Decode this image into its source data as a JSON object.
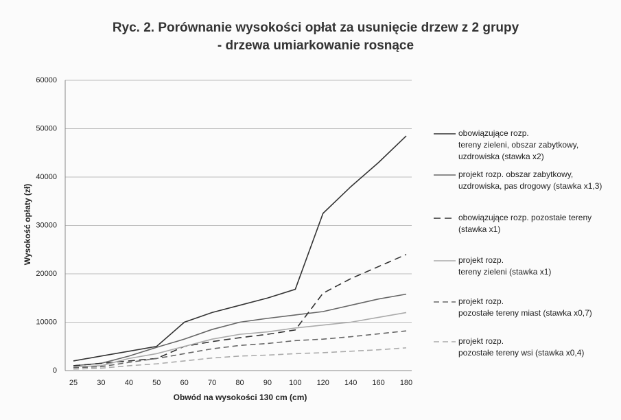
{
  "chart_data": {
    "type": "line",
    "title": "Ryc. 2. Porównanie wysokości opłat za usunięcie drzew z 2 grupy\n- drzewa umiarkowanie rosnące",
    "x_label": "Obwód  na wysokości 130 cm (cm)",
    "y_label": "Wysokość opłaty (zł)",
    "categories": [
      "25",
      "30",
      "40",
      "50",
      "60",
      "70",
      "80",
      "90",
      "100",
      "120",
      "140",
      "160",
      "180"
    ],
    "ylim": [
      0,
      60000
    ],
    "yticks": [
      0,
      10000,
      20000,
      30000,
      40000,
      50000,
      60000
    ],
    "grid": true,
    "legend": "right",
    "series": [
      {
        "name": "obowiązujące rozp.\ntereny zieleni, obszar zabytkowy,\nuzdrowiska (stawka x2)",
        "color": "#333333",
        "dash": "none",
        "values": [
          2000,
          3000,
          4000,
          5000,
          10000,
          12000,
          13500,
          15000,
          16800,
          32500,
          38000,
          43000,
          48500
        ]
      },
      {
        "name": "projekt rozp. obszar zabytkowy,\nuzdrowiska, pas drogowy (stawka x1,3)",
        "color": "#666666",
        "dash": "none",
        "values": [
          1000,
          1500,
          3000,
          4800,
          6500,
          8500,
          10000,
          10800,
          11500,
          12200,
          13500,
          14800,
          15800
        ]
      },
      {
        "name": "obowiązujące rozp. pozostałe tereny\n(stawka x1)",
        "color": "#333333",
        "dash": "10,6",
        "values": [
          1000,
          1500,
          2000,
          2500,
          5000,
          6000,
          6800,
          7500,
          8400,
          16000,
          19000,
          21500,
          24000
        ]
      },
      {
        "name": "projekt rozp.\ntereny zieleni (stawka x1)",
        "color": "#aaaaaa",
        "dash": "none",
        "values": [
          800,
          1000,
          2500,
          3500,
          5000,
          6500,
          7500,
          8000,
          8800,
          9400,
          10000,
          11000,
          12000
        ]
      },
      {
        "name": "projekt rozp.\npozostałe tereny miast (stawka x0,7)",
        "color": "#666666",
        "dash": "8,5",
        "values": [
          600,
          800,
          1700,
          2500,
          3500,
          4500,
          5200,
          5600,
          6200,
          6500,
          7000,
          7600,
          8200
        ]
      },
      {
        "name": "projekt rozp.\npozostałe tereny wsi (stawka x0,4)",
        "color": "#aaaaaa",
        "dash": "8,5",
        "values": [
          300,
          500,
          1000,
          1400,
          2000,
          2600,
          3000,
          3200,
          3500,
          3700,
          4000,
          4300,
          4700
        ]
      }
    ]
  }
}
